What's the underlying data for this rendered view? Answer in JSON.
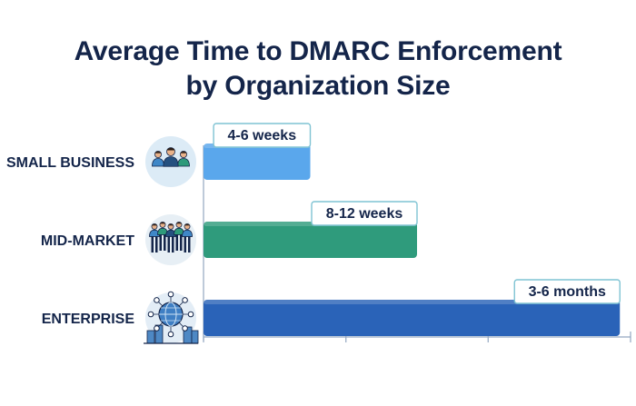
{
  "title": {
    "line1": "Average Time to DMARC Enforcement",
    "line2": "by Organization Size"
  },
  "colors": {
    "title": "#14254a",
    "small_business": "#5aa7ec",
    "mid_market": "#2f9b7c",
    "enterprise": "#2a63b8",
    "axis": "#93a7c0",
    "label_border": "#7fc3d3"
  },
  "chart_data": {
    "type": "bar",
    "orientation": "horizontal",
    "title": "Average Time to DMARC Enforcement by Organization Size",
    "categories": [
      "SMALL BUSINESS",
      "MID-MARKET",
      "ENTERPRISE"
    ],
    "value_labels": [
      "4-6 weeks",
      "8-12 weeks",
      "3-6 months"
    ],
    "values": [
      5,
      10,
      19.5
    ],
    "value_unit": "weeks (midpoint, approximate)",
    "xlim": [
      0,
      20
    ],
    "x_ticks": [
      0,
      6.67,
      13.33,
      20
    ],
    "icons": [
      "small-team-icon",
      "crowd-icon",
      "globe-network-icon"
    ],
    "grid": false,
    "legend": "none"
  }
}
